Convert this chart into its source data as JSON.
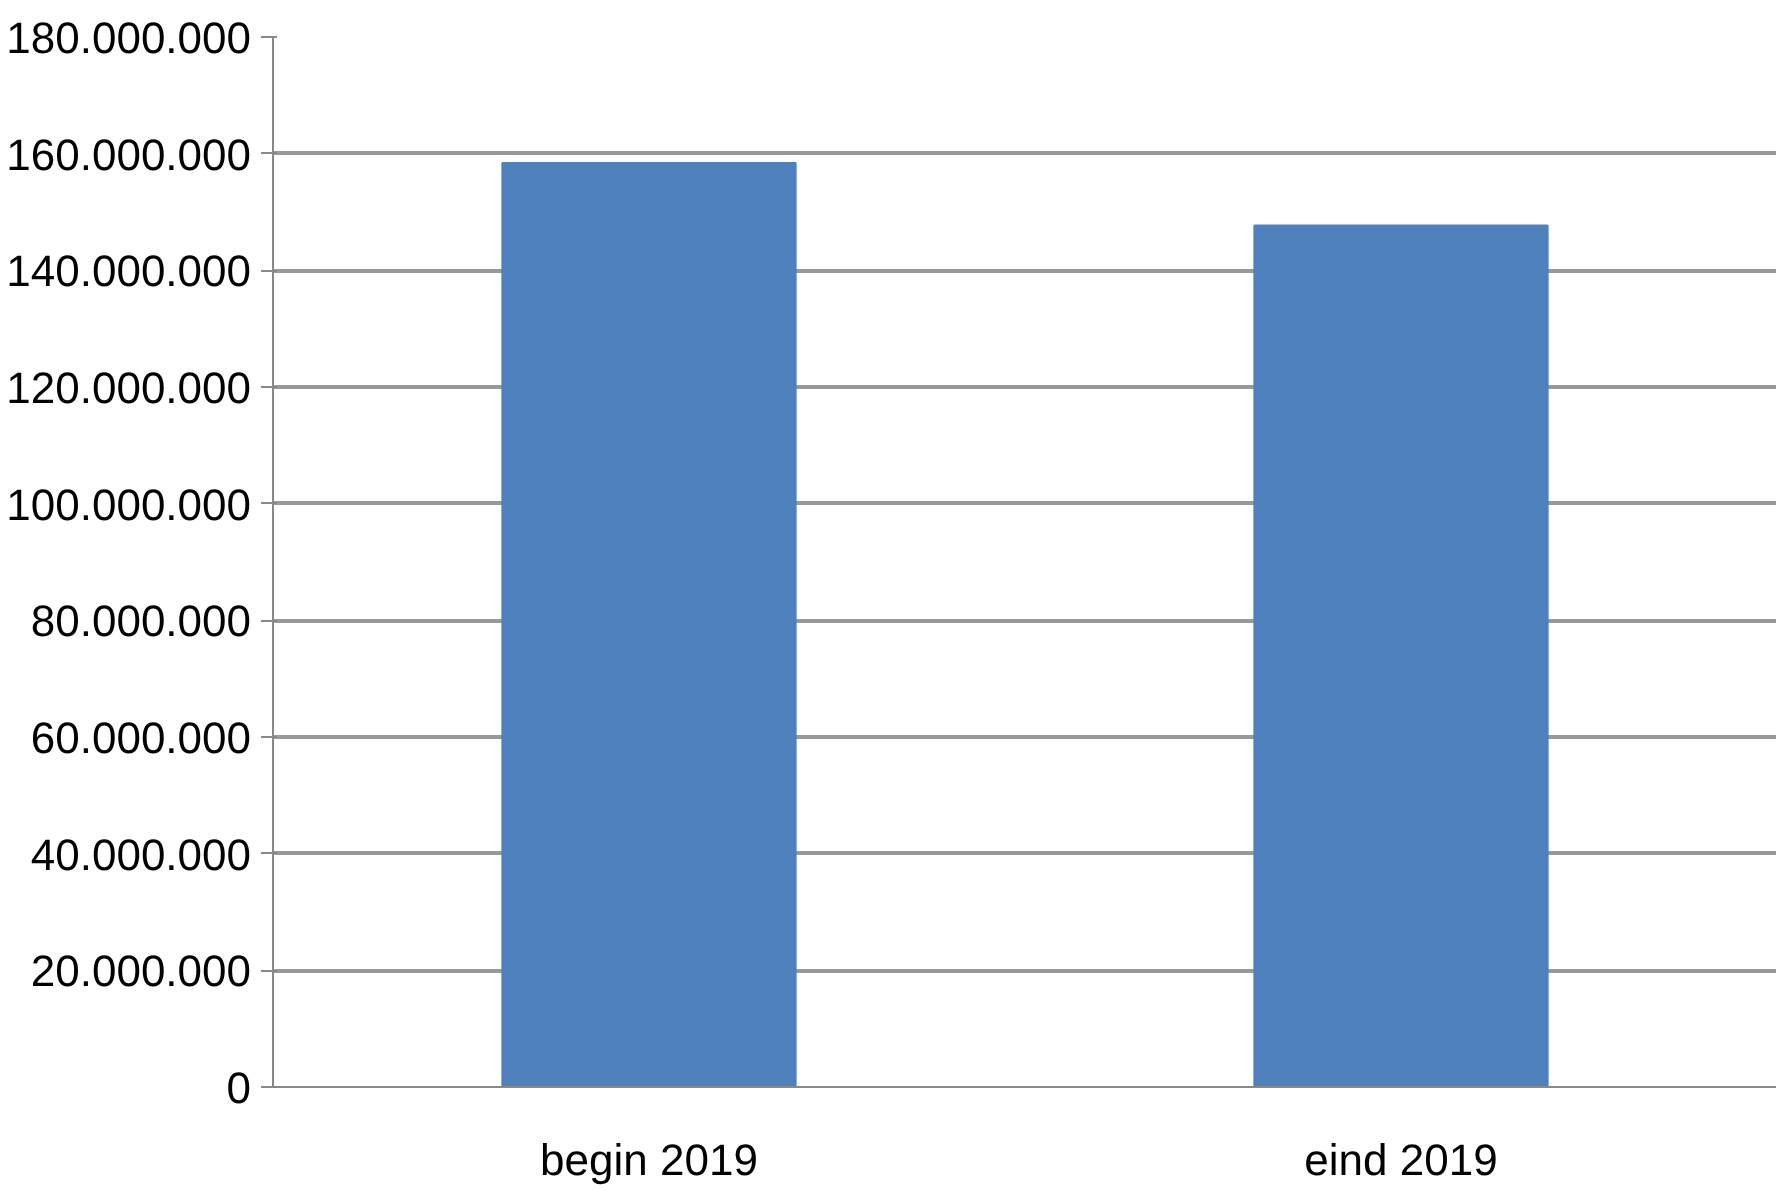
{
  "chart_data": {
    "type": "bar",
    "categories": [
      "begin 2019",
      "eind 2019"
    ],
    "values": [
      158400000,
      147700000
    ],
    "color": "#4f81bd",
    "ylim": [
      0,
      180000000
    ],
    "yticks": [
      {
        "value": 0,
        "label": "0"
      },
      {
        "value": 20000000,
        "label": "20.000.000"
      },
      {
        "value": 40000000,
        "label": "40.000.000"
      },
      {
        "value": 60000000,
        "label": "60.000.000"
      },
      {
        "value": 80000000,
        "label": "80.000.000"
      },
      {
        "value": 100000000,
        "label": "100.000.000"
      },
      {
        "value": 120000000,
        "label": "120.000.000"
      },
      {
        "value": 140000000,
        "label": "140.000.000"
      },
      {
        "value": 160000000,
        "label": "160.000.000"
      },
      {
        "value": 180000000,
        "label": "180.000.000"
      }
    ],
    "grid": "y"
  }
}
